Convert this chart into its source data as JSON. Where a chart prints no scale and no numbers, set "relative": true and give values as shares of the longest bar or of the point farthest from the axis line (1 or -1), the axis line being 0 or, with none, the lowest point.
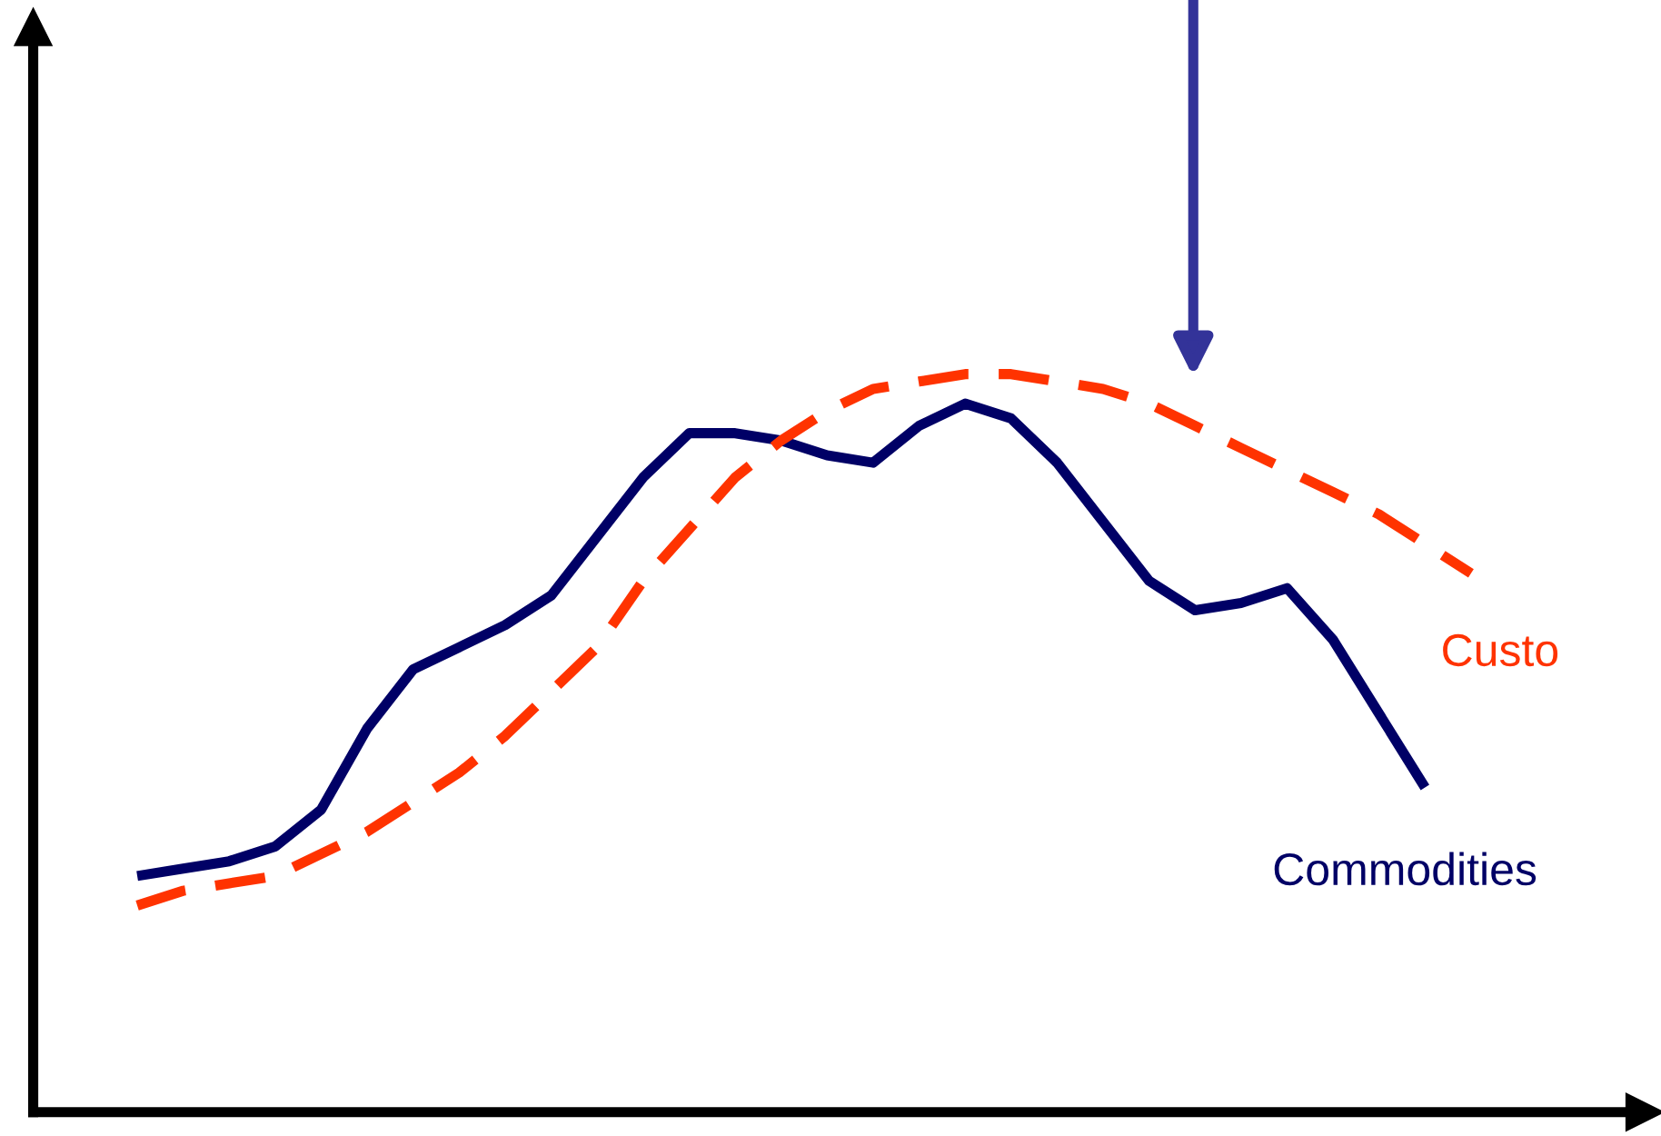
{
  "chart_data": {
    "type": "line",
    "relative": true,
    "tick_labels": false,
    "legend": false,
    "categories": [
      null,
      null,
      null,
      null,
      null,
      null,
      null,
      null,
      null,
      null,
      null,
      null,
      null,
      null,
      null,
      null,
      null,
      null,
      null,
      null,
      null,
      null,
      null,
      null,
      null,
      null,
      null,
      null,
      null,
      null
    ],
    "series": [
      {
        "name": "Commodities",
        "color": "#000066",
        "line_style": "solid",
        "values": [
          0.32,
          0.33,
          0.34,
          0.36,
          0.41,
          0.52,
          0.6,
          0.63,
          0.66,
          0.7,
          0.78,
          0.86,
          0.92,
          0.92,
          0.91,
          0.89,
          0.88,
          0.93,
          0.96,
          0.94,
          0.88,
          0.8,
          0.72,
          0.68,
          0.69,
          0.71,
          0.64,
          0.54,
          0.44,
          null
        ]
      },
      {
        "name": "Custo",
        "color": "#ff3300",
        "line_style": "dashed",
        "values": [
          0.28,
          0.3,
          0.31,
          0.32,
          0.35,
          0.38,
          0.42,
          0.46,
          0.51,
          0.57,
          0.63,
          0.72,
          0.79,
          0.86,
          0.91,
          0.95,
          0.98,
          0.99,
          1,
          1,
          0.99,
          0.98,
          0.96,
          0.93,
          0.9,
          0.87,
          0.84,
          0.81,
          0.77,
          0.73
        ]
      }
    ]
  }
}
